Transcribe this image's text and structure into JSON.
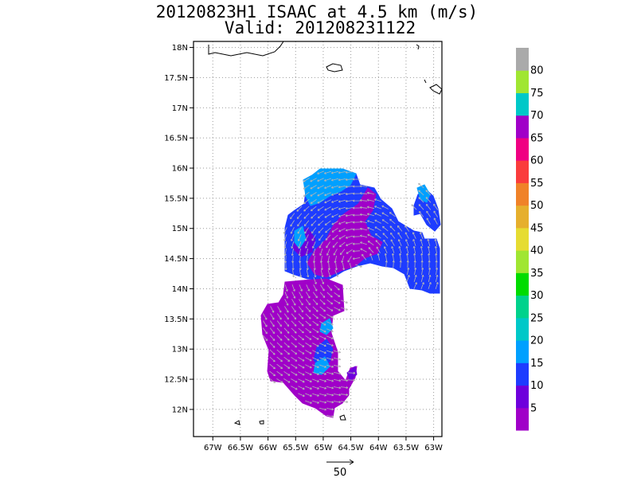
{
  "chart_data": {
    "type": "heatmap",
    "title": "20120823H1 ISAAC at 4.5 km (m/s)",
    "subtitle": "Valid: 201208231122",
    "x_ticks": [
      "67W",
      "66.5W",
      "66W",
      "65.5W",
      "65W",
      "64.5W",
      "64W",
      "63.5W",
      "63W"
    ],
    "x_tick_values": [
      -67,
      -66.5,
      -66,
      -65.5,
      -65,
      -64.5,
      -64,
      -63.5,
      -63
    ],
    "y_ticks": [
      "18N",
      "17.5N",
      "17N",
      "16.5N",
      "16N",
      "15.5N",
      "15N",
      "14.5N",
      "14N",
      "13.5N",
      "13N",
      "12.5N",
      "12N"
    ],
    "y_tick_values": [
      18,
      17.5,
      17,
      16.5,
      16,
      15.5,
      15,
      14.5,
      14,
      13.5,
      13,
      12.5,
      12
    ],
    "xlim": [
      -67.35,
      -62.85
    ],
    "ylim": [
      11.55,
      18.1
    ],
    "grid": true,
    "colorbar": {
      "labels": [
        "5",
        "10",
        "15",
        "20",
        "25",
        "30",
        "35",
        "40",
        "45",
        "50",
        "55",
        "60",
        "65",
        "70",
        "75",
        "80"
      ],
      "colors": [
        "#a000c8",
        "#6e00dc",
        "#1e3cff",
        "#00a0ff",
        "#00c8c8",
        "#00d28c",
        "#00dc00",
        "#a0e632",
        "#e6dc32",
        "#e6af2d",
        "#f08228",
        "#fa3c3c",
        "#f00082",
        "#a000c8",
        "#00c8c8",
        "#a0e632",
        "#aaaaaa"
      ]
    },
    "reference_vector": {
      "label": "50",
      "value": 50
    }
  }
}
